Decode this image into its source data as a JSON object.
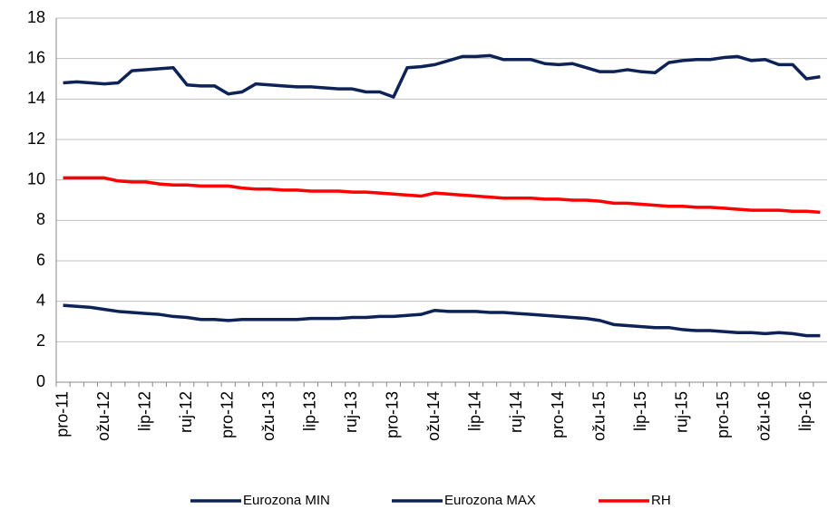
{
  "chart_data": {
    "type": "line",
    "categories": [
      "pro-11",
      null,
      null,
      "ožu-12",
      null,
      null,
      "lip-12",
      null,
      null,
      "ruj-12",
      null,
      null,
      "pro-12",
      null,
      null,
      "ožu-13",
      null,
      null,
      "lip-13",
      null,
      null,
      "ruj-13",
      null,
      null,
      "pro-13",
      null,
      null,
      "ožu-14",
      null,
      null,
      "lip-14",
      null,
      null,
      "ruj-14",
      null,
      null,
      "pro-14",
      null,
      null,
      "ožu-15",
      null,
      null,
      "lip-15",
      null,
      null,
      "ruj-15",
      null,
      null,
      "pro-15",
      null,
      null,
      "ožu-16",
      null,
      null,
      "lip-16",
      null
    ],
    "series": [
      {
        "name": "Eurozona MIN",
        "color": "#0d2257",
        "values": [
          3.8,
          3.75,
          3.7,
          3.6,
          3.5,
          3.45,
          3.4,
          3.35,
          3.25,
          3.2,
          3.1,
          3.1,
          3.05,
          3.1,
          3.1,
          3.1,
          3.1,
          3.1,
          3.15,
          3.15,
          3.15,
          3.2,
          3.2,
          3.25,
          3.25,
          3.3,
          3.35,
          3.55,
          3.5,
          3.5,
          3.5,
          3.45,
          3.45,
          3.4,
          3.35,
          3.3,
          3.25,
          3.2,
          3.15,
          3.05,
          2.85,
          2.8,
          2.75,
          2.7,
          2.7,
          2.6,
          2.55,
          2.55,
          2.5,
          2.45,
          2.45,
          2.4,
          2.45,
          2.4,
          2.3,
          2.3
        ]
      },
      {
        "name": "Eurozona MAX",
        "color": "#0d2257",
        "values": [
          14.8,
          14.85,
          14.8,
          14.75,
          14.8,
          15.4,
          15.45,
          15.5,
          15.55,
          14.7,
          14.65,
          14.65,
          14.25,
          14.35,
          14.75,
          14.7,
          14.65,
          14.6,
          14.6,
          14.55,
          14.5,
          14.5,
          14.35,
          14.35,
          14.1,
          15.55,
          15.6,
          15.7,
          15.9,
          16.1,
          16.1,
          16.15,
          15.95,
          15.95,
          15.95,
          15.75,
          15.7,
          15.75,
          15.55,
          15.35,
          15.35,
          15.45,
          15.35,
          15.3,
          15.8,
          15.9,
          15.95,
          15.95,
          16.05,
          16.1,
          15.9,
          15.95,
          15.7,
          15.7,
          15.0,
          15.1
        ]
      },
      {
        "name": "RH",
        "color": "#ff0000",
        "values": [
          10.1,
          10.1,
          10.1,
          10.1,
          9.95,
          9.9,
          9.9,
          9.8,
          9.75,
          9.75,
          9.7,
          9.7,
          9.7,
          9.6,
          9.55,
          9.55,
          9.5,
          9.5,
          9.45,
          9.45,
          9.45,
          9.4,
          9.4,
          9.35,
          9.3,
          9.25,
          9.2,
          9.35,
          9.3,
          9.25,
          9.2,
          9.15,
          9.1,
          9.1,
          9.1,
          9.05,
          9.05,
          9.0,
          9.0,
          8.95,
          8.85,
          8.85,
          8.8,
          8.75,
          8.7,
          8.7,
          8.65,
          8.65,
          8.6,
          8.55,
          8.5,
          8.5,
          8.5,
          8.45,
          8.45,
          8.4
        ]
      }
    ],
    "ylim": [
      0,
      18
    ],
    "yticks": [
      0,
      2,
      4,
      6,
      8,
      10,
      12,
      14,
      16,
      18
    ],
    "grid": true,
    "legend": "bottom"
  }
}
